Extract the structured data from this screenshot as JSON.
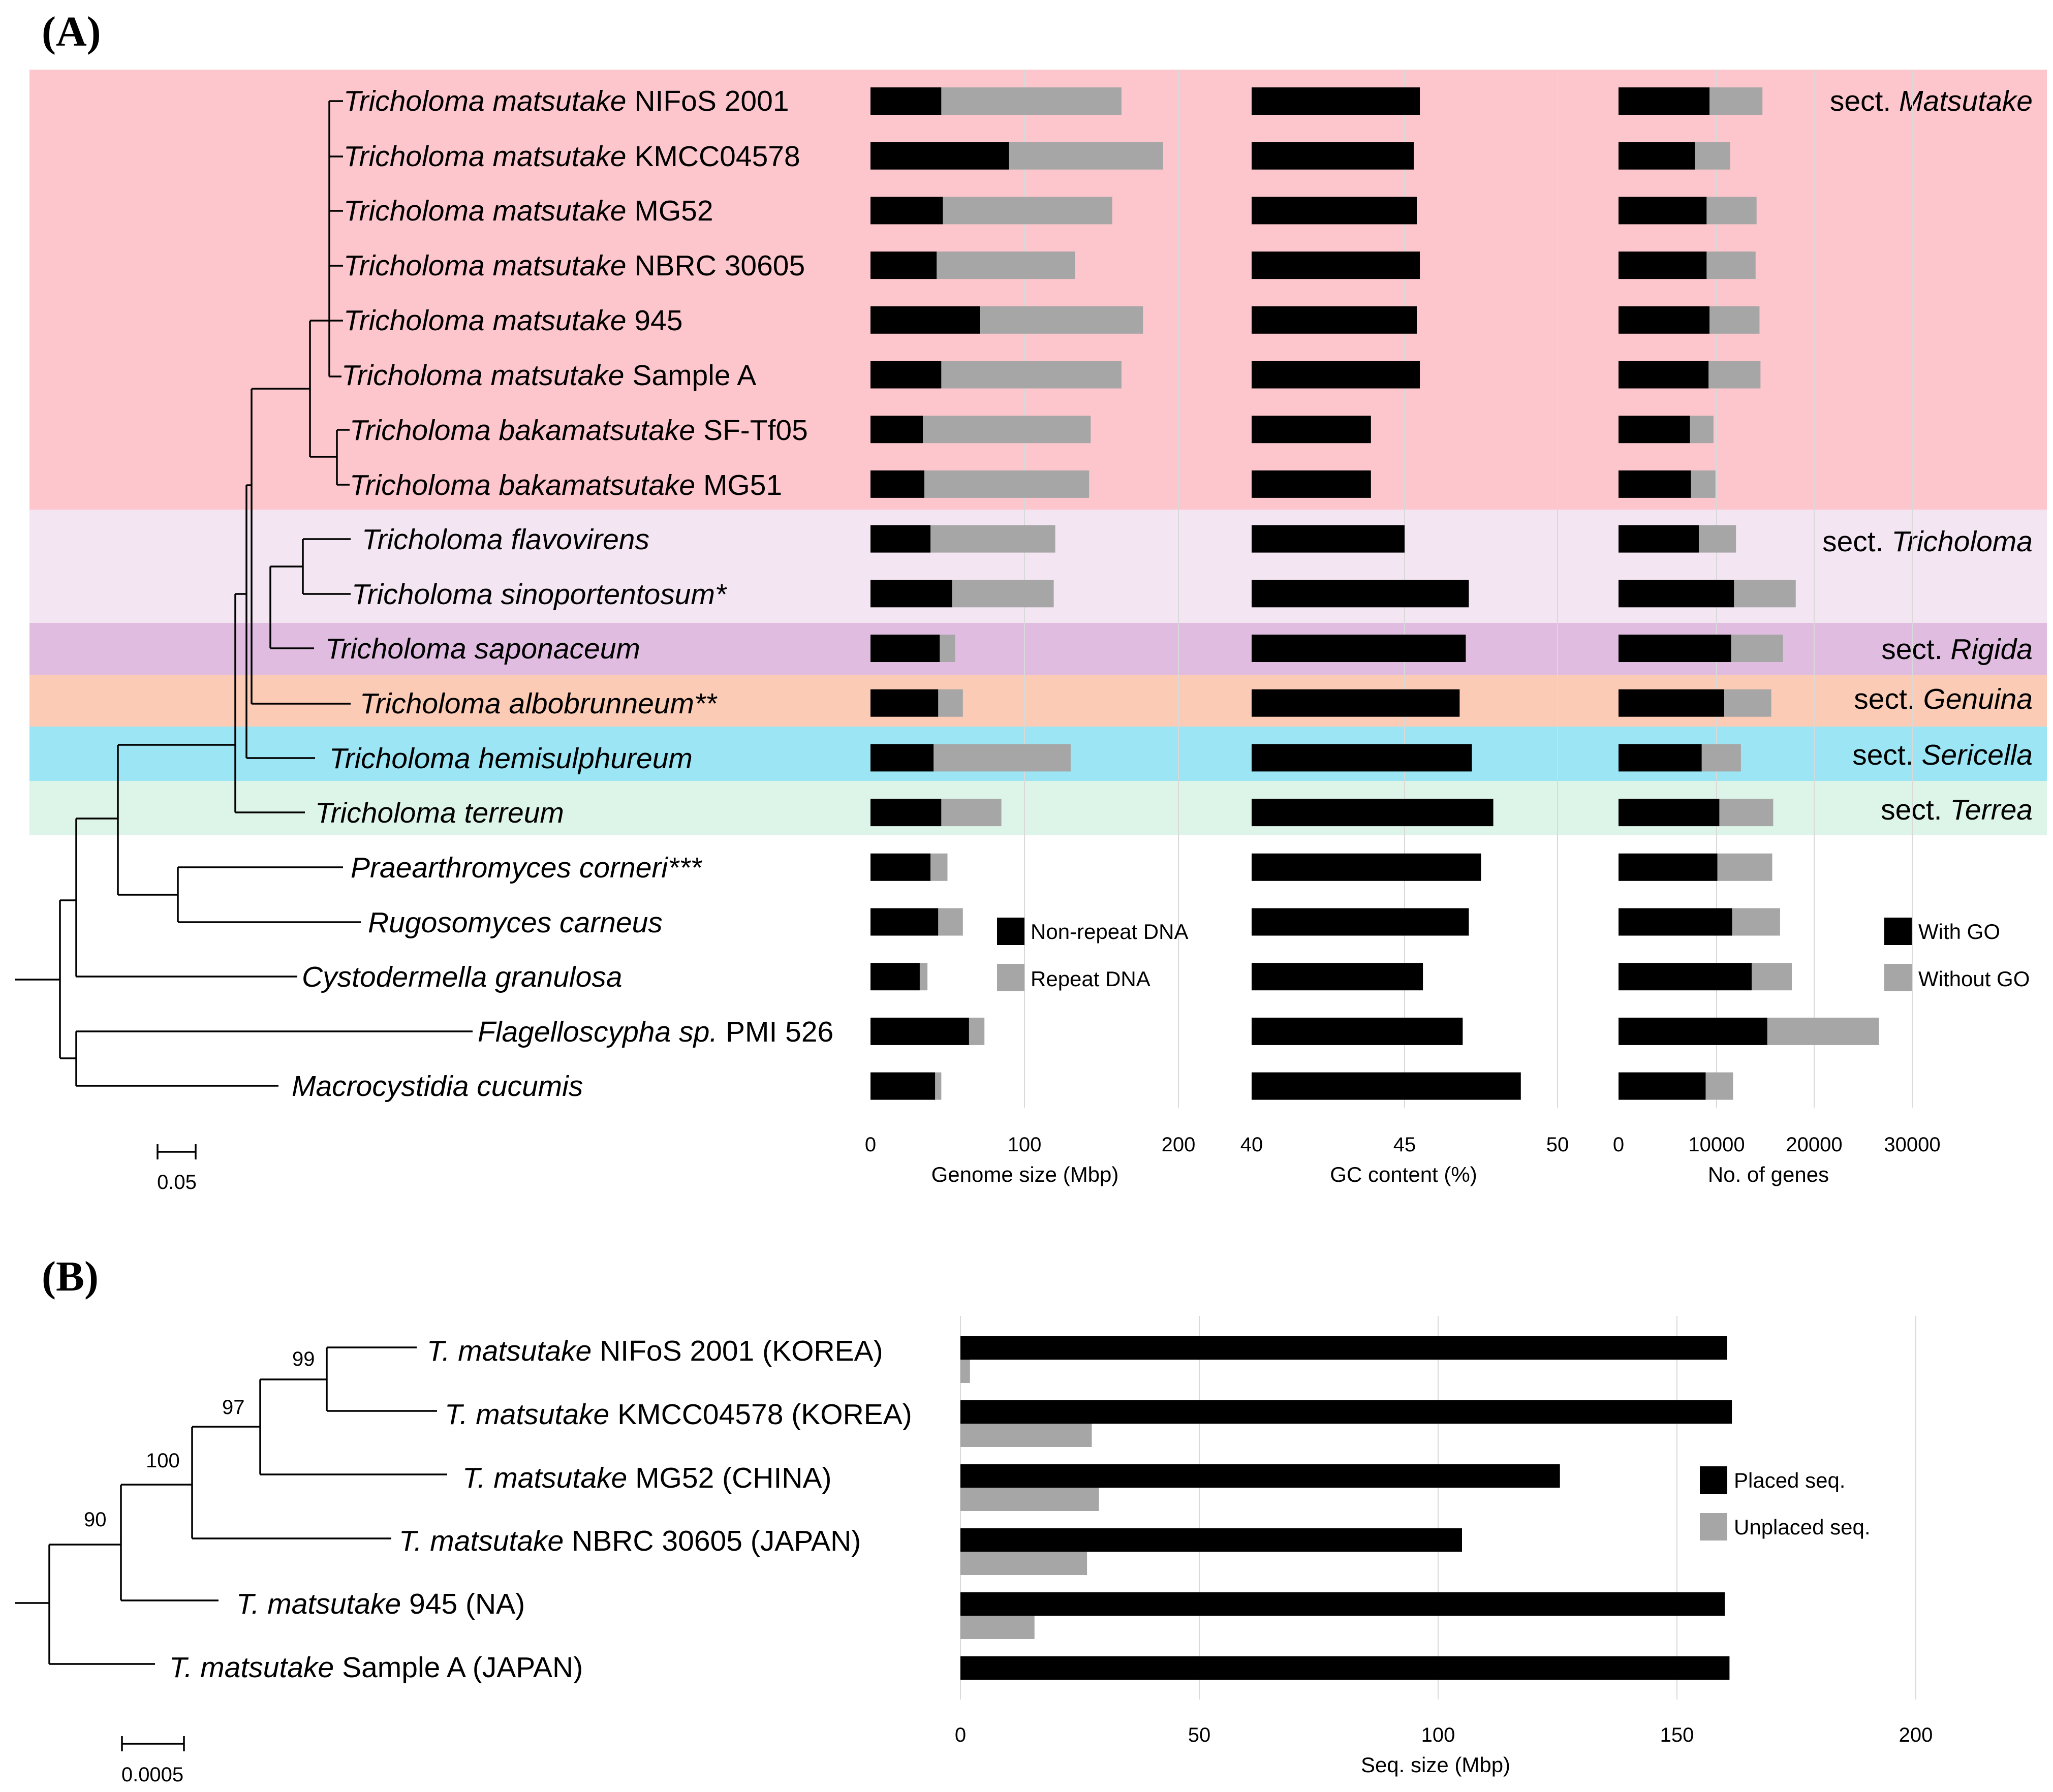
{
  "panel_a": {
    "label": "(A)",
    "taxa": [
      {
        "genus": "Tricholoma",
        "epithet": "matsutake",
        "strain": "NIFoS 2001"
      },
      {
        "genus": "Tricholoma",
        "epithet": "matsutake",
        "strain": "KMCC04578"
      },
      {
        "genus": "Tricholoma",
        "epithet": "matsutake",
        "strain": "MG52"
      },
      {
        "genus": "Tricholoma",
        "epithet": "matsutake",
        "strain": "NBRC 30605"
      },
      {
        "genus": "Tricholoma",
        "epithet": "matsutake",
        "strain": "945"
      },
      {
        "genus": "Tricholoma",
        "epithet": "matsutake",
        "strain": "Sample A"
      },
      {
        "genus": "Tricholoma",
        "epithet": "bakamatsutake",
        "strain": "SF-Tf05"
      },
      {
        "genus": "Tricholoma",
        "epithet": "bakamatsutake",
        "strain": "MG51"
      },
      {
        "genus": "Tricholoma",
        "epithet": "flavovirens",
        "strain": ""
      },
      {
        "genus": "Tricholoma",
        "epithet": "sinoportentosum*",
        "strain": ""
      },
      {
        "genus": "Tricholoma",
        "epithet": "saponaceum",
        "strain": ""
      },
      {
        "genus": "Tricholoma",
        "epithet": "albobrunneum**",
        "strain": ""
      },
      {
        "genus": "Tricholoma",
        "epithet": "hemisulphureum",
        "strain": ""
      },
      {
        "genus": "Tricholoma",
        "epithet": "terreum",
        "strain": ""
      },
      {
        "genus": "Praearthromyces",
        "epithet": "corneri***",
        "strain": ""
      },
      {
        "genus": "Rugosomyces",
        "epithet": "carneus",
        "strain": ""
      },
      {
        "genus": "Cystodermella",
        "epithet": "granulosa",
        "strain": ""
      },
      {
        "genus": "Flagelloscypha",
        "epithet": "sp.",
        "strain": "PMI 526"
      },
      {
        "genus": "Macrocystidia",
        "epithet": "cucumis",
        "strain": ""
      }
    ],
    "sections": [
      {
        "prefix": "sect.",
        "name": "Matsutake",
        "color": "#fdc6cc"
      },
      {
        "prefix": "sect.",
        "name": "Tricholoma",
        "color": "#f3e6f2"
      },
      {
        "prefix": "sect.",
        "name": "Rigida",
        "color": "#e0bde0"
      },
      {
        "prefix": "sect.",
        "name": "Genuina",
        "color": "#fccbb5"
      },
      {
        "prefix": "sect.",
        "name": "Sericella",
        "color": "#9be5f4"
      },
      {
        "prefix": "sect.",
        "name": "Terrea",
        "color": "#ddf5e8"
      }
    ],
    "scale_bar": "0.05"
  },
  "panel_b": {
    "label": "(B)",
    "taxa": [
      {
        "abbr": "T.",
        "epithet": "matsutake",
        "strain": "NIFoS 2001 (KOREA)"
      },
      {
        "abbr": "T.",
        "epithet": "matsutake",
        "strain": "KMCC04578 (KOREA)"
      },
      {
        "abbr": "T.",
        "epithet": "matsutake",
        "strain": "MG52 (CHINA)"
      },
      {
        "abbr": "T.",
        "epithet": "matsutake",
        "strain": "NBRC 30605 (JAPAN)"
      },
      {
        "abbr": "T.",
        "epithet": "matsutake",
        "strain": "945 (NA)"
      },
      {
        "abbr": "T.",
        "epithet": "matsutake",
        "strain": "Sample A (JAPAN)"
      }
    ],
    "bootstrap": [
      "99",
      "97",
      "100",
      "90"
    ],
    "scale_bar": "0.0005"
  },
  "chart_data": [
    {
      "type": "bar",
      "stacked": true,
      "orientation": "horizontal",
      "xlabel": "Genome size (Mbp)",
      "xlim": [
        0,
        200
      ],
      "xticks": [
        "0",
        "100",
        "200"
      ],
      "grid": true,
      "legend_position": "bottom-right",
      "series": [
        {
          "name": "Non-repeat DNA",
          "color": "#000000",
          "values": [
            46,
            90,
            47,
            43,
            71,
            46,
            34,
            35,
            39,
            53,
            45,
            44,
            41,
            46,
            39,
            44,
            32,
            64,
            42
          ]
        },
        {
          "name": "Repeat DNA",
          "color": "#a6a6a6",
          "values": [
            117,
            100,
            110,
            90,
            106,
            117,
            109,
            107,
            81,
            66,
            10,
            16,
            89,
            39,
            11,
            16,
            5,
            10,
            4
          ]
        }
      ]
    },
    {
      "type": "bar",
      "orientation": "horizontal",
      "xlabel": "GC content (%)",
      "xlim": [
        40,
        50
      ],
      "xticks": [
        "40",
        "45",
        "50"
      ],
      "grid": true,
      "series": [
        {
          "name": "",
          "color": "#000000",
          "values": [
            45.5,
            45.3,
            45.4,
            45.5,
            45.4,
            45.5,
            43.9,
            43.9,
            45.0,
            47.1,
            47.0,
            46.8,
            47.2,
            47.9,
            47.5,
            47.1,
            45.6,
            46.9,
            48.8
          ]
        }
      ]
    },
    {
      "type": "bar",
      "stacked": true,
      "orientation": "horizontal",
      "xlabel": "No. of genes",
      "xlim": [
        0,
        30000
      ],
      "xticks": [
        "0",
        "10000",
        "20000",
        "30000"
      ],
      "grid": true,
      "legend_position": "bottom-right",
      "series": [
        {
          "name": "With GO",
          "color": "#000000",
          "values": [
            9300,
            7800,
            9000,
            9000,
            9300,
            9200,
            7300,
            7400,
            8200,
            11800,
            11500,
            10800,
            8500,
            10300,
            10100,
            11600,
            13600,
            15200,
            8900
          ]
        },
        {
          "name": "Without GO",
          "color": "#a6a6a6",
          "values": [
            5400,
            3600,
            5100,
            5000,
            5100,
            5300,
            2400,
            2500,
            3800,
            6300,
            5300,
            4800,
            4000,
            5500,
            5600,
            4900,
            4100,
            11400,
            2800
          ]
        }
      ]
    },
    {
      "type": "bar",
      "orientation": "horizontal",
      "grouped": true,
      "xlabel": "Seq. size (Mbp)",
      "xlim": [
        0,
        200
      ],
      "xticks": [
        "0",
        "50",
        "100",
        "150",
        "200"
      ],
      "grid": true,
      "legend_position": "right",
      "series": [
        {
          "name": "Placed seq.",
          "color": "#000000",
          "values": [
            160.5,
            161.5,
            125.5,
            105.0,
            160.0,
            161.0
          ]
        },
        {
          "name": "Unplaced seq.",
          "color": "#a6a6a6",
          "values": [
            2.0,
            27.5,
            29.0,
            26.5,
            15.5,
            0
          ]
        }
      ]
    }
  ]
}
